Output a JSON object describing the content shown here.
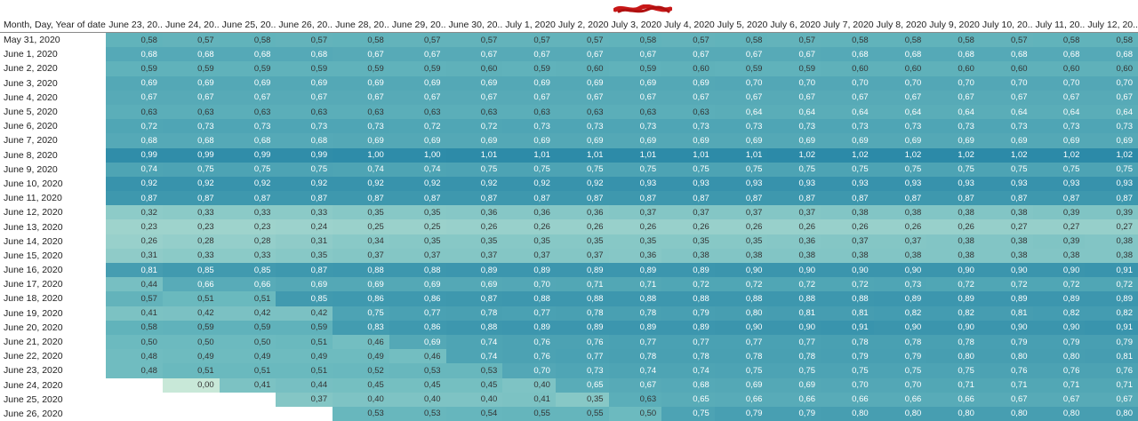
{
  "view": {
    "row_header": "Month, Day, Year of date",
    "columns": [
      "June 23, 20..",
      "June 24, 20..",
      "June 25, 20..",
      "June 26, 20..",
      "June 28, 20..",
      "June 29, 20..",
      "June 30, 20..",
      "July 1, 2020",
      "July 2, 2020",
      "July 3, 2020",
      "July 4, 2020",
      "July 5, 2020",
      "July 6, 2020",
      "July 7, 2020",
      "July 8, 2020",
      "July 9, 2020",
      "July 10, 20..",
      "July 11, 20..",
      "July 12, 20.."
    ],
    "rows": [
      {
        "label": "May 31, 2020",
        "values": [
          "0,58",
          "0,57",
          "0,58",
          "0,57",
          "0,58",
          "0,57",
          "0,57",
          "0,57",
          "0,57",
          "0,58",
          "0,57",
          "0,58",
          "0,57",
          "0,58",
          "0,58",
          "0,58",
          "0,57",
          "0,58",
          "0,58"
        ]
      },
      {
        "label": "June 1, 2020",
        "values": [
          "0,68",
          "0,68",
          "0,68",
          "0,68",
          "0,67",
          "0,67",
          "0,67",
          "0,67",
          "0,67",
          "0,67",
          "0,67",
          "0,67",
          "0,67",
          "0,68",
          "0,68",
          "0,68",
          "0,68",
          "0,68",
          "0,68"
        ]
      },
      {
        "label": "June 2, 2020",
        "values": [
          "0,59",
          "0,59",
          "0,59",
          "0,59",
          "0,59",
          "0,59",
          "0,60",
          "0,59",
          "0,60",
          "0,59",
          "0,60",
          "0,59",
          "0,59",
          "0,60",
          "0,60",
          "0,60",
          "0,60",
          "0,60",
          "0,60"
        ]
      },
      {
        "label": "June 3, 2020",
        "values": [
          "0,69",
          "0,69",
          "0,69",
          "0,69",
          "0,69",
          "0,69",
          "0,69",
          "0,69",
          "0,69",
          "0,69",
          "0,69",
          "0,70",
          "0,70",
          "0,70",
          "0,70",
          "0,70",
          "0,70",
          "0,70",
          "0,70"
        ]
      },
      {
        "label": "June 4, 2020",
        "values": [
          "0,67",
          "0,67",
          "0,67",
          "0,67",
          "0,67",
          "0,67",
          "0,67",
          "0,67",
          "0,67",
          "0,67",
          "0,67",
          "0,67",
          "0,67",
          "0,67",
          "0,67",
          "0,67",
          "0,67",
          "0,67",
          "0,67"
        ]
      },
      {
        "label": "June 5, 2020",
        "values": [
          "0,63",
          "0,63",
          "0,63",
          "0,63",
          "0,63",
          "0,63",
          "0,63",
          "0,63",
          "0,63",
          "0,63",
          "0,63",
          "0,64",
          "0,64",
          "0,64",
          "0,64",
          "0,64",
          "0,64",
          "0,64",
          "0,64"
        ]
      },
      {
        "label": "June 6, 2020",
        "values": [
          "0,72",
          "0,73",
          "0,73",
          "0,73",
          "0,73",
          "0,72",
          "0,72",
          "0,73",
          "0,73",
          "0,73",
          "0,73",
          "0,73",
          "0,73",
          "0,73",
          "0,73",
          "0,73",
          "0,73",
          "0,73",
          "0,73"
        ]
      },
      {
        "label": "June 7, 2020",
        "values": [
          "0,68",
          "0,68",
          "0,68",
          "0,68",
          "0,69",
          "0,69",
          "0,69",
          "0,69",
          "0,69",
          "0,69",
          "0,69",
          "0,69",
          "0,69",
          "0,69",
          "0,69",
          "0,69",
          "0,69",
          "0,69",
          "0,69"
        ]
      },
      {
        "label": "June 8, 2020",
        "values": [
          "0,99",
          "0,99",
          "0,99",
          "0,99",
          "1,00",
          "1,00",
          "1,01",
          "1,01",
          "1,01",
          "1,01",
          "1,01",
          "1,01",
          "1,02",
          "1,02",
          "1,02",
          "1,02",
          "1,02",
          "1,02",
          "1,02"
        ]
      },
      {
        "label": "June 9, 2020",
        "values": [
          "0,74",
          "0,75",
          "0,75",
          "0,75",
          "0,74",
          "0,74",
          "0,75",
          "0,75",
          "0,75",
          "0,75",
          "0,75",
          "0,75",
          "0,75",
          "0,75",
          "0,75",
          "0,75",
          "0,75",
          "0,75",
          "0,75"
        ]
      },
      {
        "label": "June 10, 2020",
        "values": [
          "0,92",
          "0,92",
          "0,92",
          "0,92",
          "0,92",
          "0,92",
          "0,92",
          "0,92",
          "0,92",
          "0,93",
          "0,93",
          "0,93",
          "0,93",
          "0,93",
          "0,93",
          "0,93",
          "0,93",
          "0,93",
          "0,93"
        ]
      },
      {
        "label": "June 11, 2020",
        "values": [
          "0,87",
          "0,87",
          "0,87",
          "0,87",
          "0,87",
          "0,87",
          "0,87",
          "0,87",
          "0,87",
          "0,87",
          "0,87",
          "0,87",
          "0,87",
          "0,87",
          "0,87",
          "0,87",
          "0,87",
          "0,87",
          "0,87"
        ]
      },
      {
        "label": "June 12, 2020",
        "values": [
          "0,32",
          "0,33",
          "0,33",
          "0,33",
          "0,35",
          "0,35",
          "0,36",
          "0,36",
          "0,36",
          "0,37",
          "0,37",
          "0,37",
          "0,37",
          "0,38",
          "0,38",
          "0,38",
          "0,38",
          "0,39",
          "0,39"
        ]
      },
      {
        "label": "June 13, 2020",
        "values": [
          "0,23",
          "0,23",
          "0,23",
          "0,24",
          "0,25",
          "0,25",
          "0,26",
          "0,26",
          "0,26",
          "0,26",
          "0,26",
          "0,26",
          "0,26",
          "0,26",
          "0,26",
          "0,26",
          "0,27",
          "0,27",
          "0,27"
        ]
      },
      {
        "label": "June 14, 2020",
        "values": [
          "0,26",
          "0,28",
          "0,28",
          "0,31",
          "0,34",
          "0,35",
          "0,35",
          "0,35",
          "0,35",
          "0,35",
          "0,35",
          "0,35",
          "0,36",
          "0,37",
          "0,37",
          "0,38",
          "0,38",
          "0,39",
          "0,38"
        ]
      },
      {
        "label": "June 15, 2020",
        "values": [
          "0,31",
          "0,33",
          "0,33",
          "0,35",
          "0,37",
          "0,37",
          "0,37",
          "0,37",
          "0,37",
          "0,36",
          "0,38",
          "0,38",
          "0,38",
          "0,38",
          "0,38",
          "0,38",
          "0,38",
          "0,38",
          "0,38"
        ]
      },
      {
        "label": "June 16, 2020",
        "values": [
          "0,81",
          "0,85",
          "0,85",
          "0,87",
          "0,88",
          "0,88",
          "0,89",
          "0,89",
          "0,89",
          "0,89",
          "0,89",
          "0,90",
          "0,90",
          "0,90",
          "0,90",
          "0,90",
          "0,90",
          "0,90",
          "0,91"
        ]
      },
      {
        "label": "June 17, 2020",
        "values": [
          "0,44",
          "0,66",
          "0,66",
          "0,69",
          "0,69",
          "0,69",
          "0,69",
          "0,70",
          "0,71",
          "0,71",
          "0,72",
          "0,72",
          "0,72",
          "0,72",
          "0,73",
          "0,72",
          "0,72",
          "0,72",
          "0,72"
        ]
      },
      {
        "label": "June 18, 2020",
        "values": [
          "0,57",
          "0,51",
          "0,51",
          "0,85",
          "0,86",
          "0,86",
          "0,87",
          "0,88",
          "0,88",
          "0,88",
          "0,88",
          "0,88",
          "0,88",
          "0,88",
          "0,89",
          "0,89",
          "0,89",
          "0,89",
          "0,89"
        ]
      },
      {
        "label": "June 19, 2020",
        "values": [
          "0,41",
          "0,42",
          "0,42",
          "0,42",
          "0,75",
          "0,77",
          "0,78",
          "0,77",
          "0,78",
          "0,78",
          "0,79",
          "0,80",
          "0,81",
          "0,81",
          "0,82",
          "0,82",
          "0,81",
          "0,82",
          "0,82"
        ]
      },
      {
        "label": "June 20, 2020",
        "values": [
          "0,58",
          "0,59",
          "0,59",
          "0,59",
          "0,83",
          "0,86",
          "0,88",
          "0,89",
          "0,89",
          "0,89",
          "0,89",
          "0,90",
          "0,90",
          "0,91",
          "0,90",
          "0,90",
          "0,90",
          "0,90",
          "0,91"
        ]
      },
      {
        "label": "June 21, 2020",
        "values": [
          "0,50",
          "0,50",
          "0,50",
          "0,51",
          "0,46",
          "0,69",
          "0,74",
          "0,76",
          "0,76",
          "0,77",
          "0,77",
          "0,77",
          "0,77",
          "0,78",
          "0,78",
          "0,78",
          "0,79",
          "0,79",
          "0,79"
        ]
      },
      {
        "label": "June 22, 2020",
        "values": [
          "0,48",
          "0,49",
          "0,49",
          "0,49",
          "0,49",
          "0,46",
          "0,74",
          "0,76",
          "0,77",
          "0,78",
          "0,78",
          "0,78",
          "0,78",
          "0,79",
          "0,79",
          "0,80",
          "0,80",
          "0,80",
          "0,81"
        ]
      },
      {
        "label": "June 23, 2020",
        "values": [
          "0,48",
          "0,51",
          "0,51",
          "0,51",
          "0,52",
          "0,53",
          "0,53",
          "0,70",
          "0,73",
          "0,74",
          "0,74",
          "0,75",
          "0,75",
          "0,75",
          "0,75",
          "0,75",
          "0,76",
          "0,76",
          "0,76"
        ]
      },
      {
        "label": "June 24, 2020",
        "values": [
          "",
          "0,00",
          "0,41",
          "0,44",
          "0,45",
          "0,45",
          "0,45",
          "0,40",
          "0,65",
          "0,67",
          "0,68",
          "0,69",
          "0,69",
          "0,70",
          "0,70",
          "0,71",
          "0,71",
          "0,71",
          "0,71"
        ]
      },
      {
        "label": "June 25, 2020",
        "values": [
          "",
          "",
          "",
          "0,37",
          "0,40",
          "0,40",
          "0,40",
          "0,41",
          "0,35",
          "0,63",
          "0,65",
          "0,66",
          "0,66",
          "0,66",
          "0,66",
          "0,66",
          "0,67",
          "0,67",
          "0,67"
        ]
      },
      {
        "label": "June 26, 2020",
        "values": [
          "",
          "",
          "",
          "",
          "0,53",
          "0,53",
          "0,54",
          "0,55",
          "0,55",
          "0,50",
          "0,75",
          "0,79",
          "0,79",
          "0,80",
          "0,80",
          "0,80",
          "0,80",
          "0,80",
          "0,80"
        ]
      }
    ]
  },
  "colors": {
    "scale_low": "#c8e8d8",
    "scale_mid": "#6ab9be",
    "scale_high": "#2c8aa8",
    "redaction": "#c81818"
  }
}
